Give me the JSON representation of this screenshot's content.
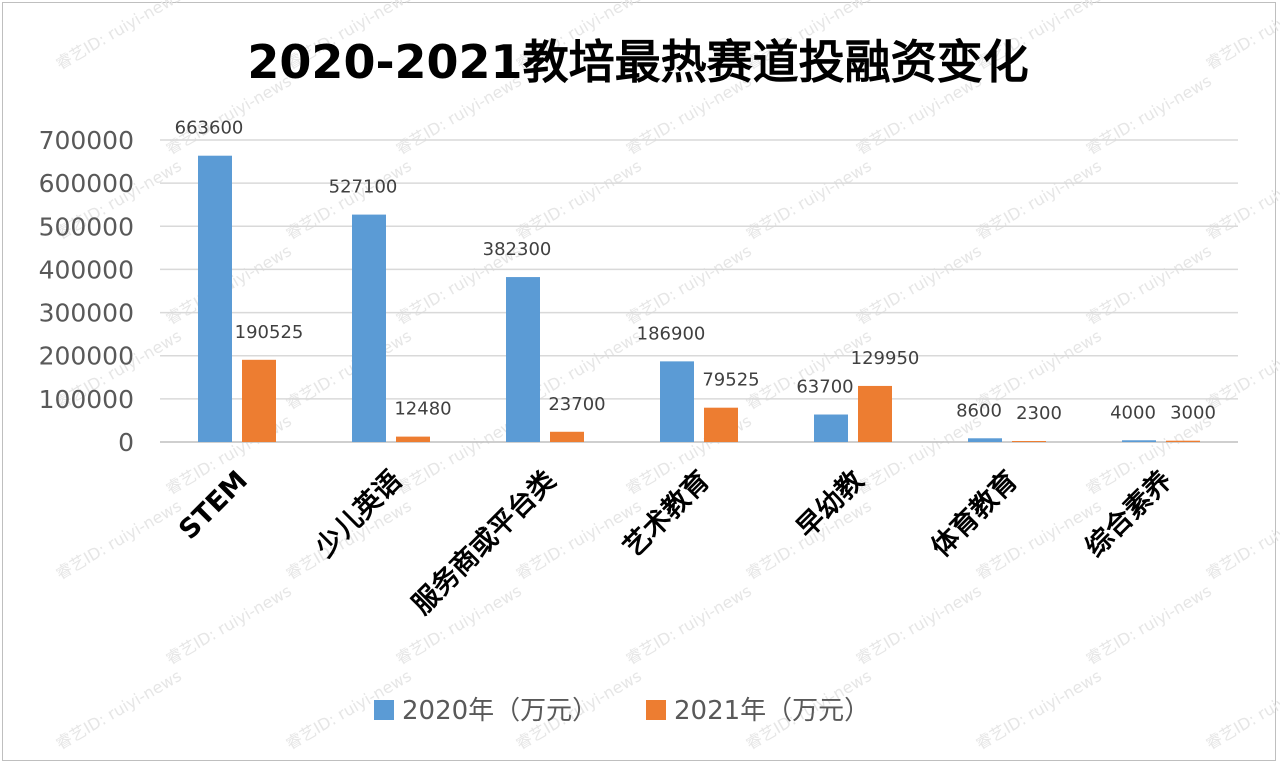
{
  "chart_data": {
    "type": "bar",
    "title": "2020-2021教培最热赛道投融资变化",
    "categories": [
      "STEM",
      "少儿英语",
      "服务商或平台类",
      "艺术教育",
      "早幼教",
      "体育教育",
      "综合素养"
    ],
    "series": [
      {
        "name": "2020年（万元）",
        "color": "#5b9bd5",
        "values": [
          663600,
          527100,
          382300,
          186900,
          63700,
          8600,
          4000
        ]
      },
      {
        "name": "2021年（万元）",
        "color": "#ed7d31",
        "values": [
          190525,
          12480,
          23700,
          79525,
          129950,
          2300,
          3000
        ]
      }
    ],
    "y_ticks": [
      0,
      100000,
      200000,
      300000,
      400000,
      500000,
      600000,
      700000
    ],
    "ylim": [
      0,
      700000
    ],
    "grid": true,
    "legend_position": "bottom",
    "watermark": "睿艺ID: ruiyi-news"
  }
}
